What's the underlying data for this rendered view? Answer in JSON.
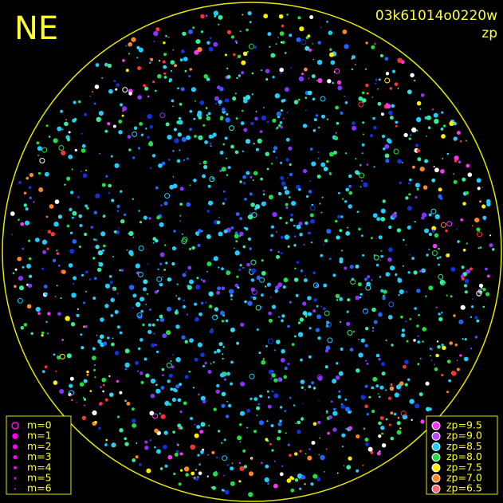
{
  "header": {
    "title": "NE",
    "id": "03k61014o0220w",
    "subtitle": "zp"
  },
  "legend_magnitude": {
    "color": "#ff00ff",
    "items": [
      {
        "label": "m=0"
      },
      {
        "label": "m=1"
      },
      {
        "label": "m=2"
      },
      {
        "label": "m=3"
      },
      {
        "label": "m=4"
      },
      {
        "label": "m=5"
      },
      {
        "label": "m=6"
      }
    ]
  },
  "legend_zp": {
    "items": [
      {
        "label": "zp=9.5",
        "color": "#ff33ff"
      },
      {
        "label": "zp=9.0",
        "color": "#bb44ff"
      },
      {
        "label": "zp=8.5",
        "color": "#22ccff"
      },
      {
        "label": "zp=8.0",
        "color": "#22dd44"
      },
      {
        "label": "zp=7.5",
        "color": "#ffee00"
      },
      {
        "label": "zp=7.0",
        "color": "#ff8822"
      },
      {
        "label": "zp=6.5",
        "color": "#ff6677"
      }
    ]
  }
}
